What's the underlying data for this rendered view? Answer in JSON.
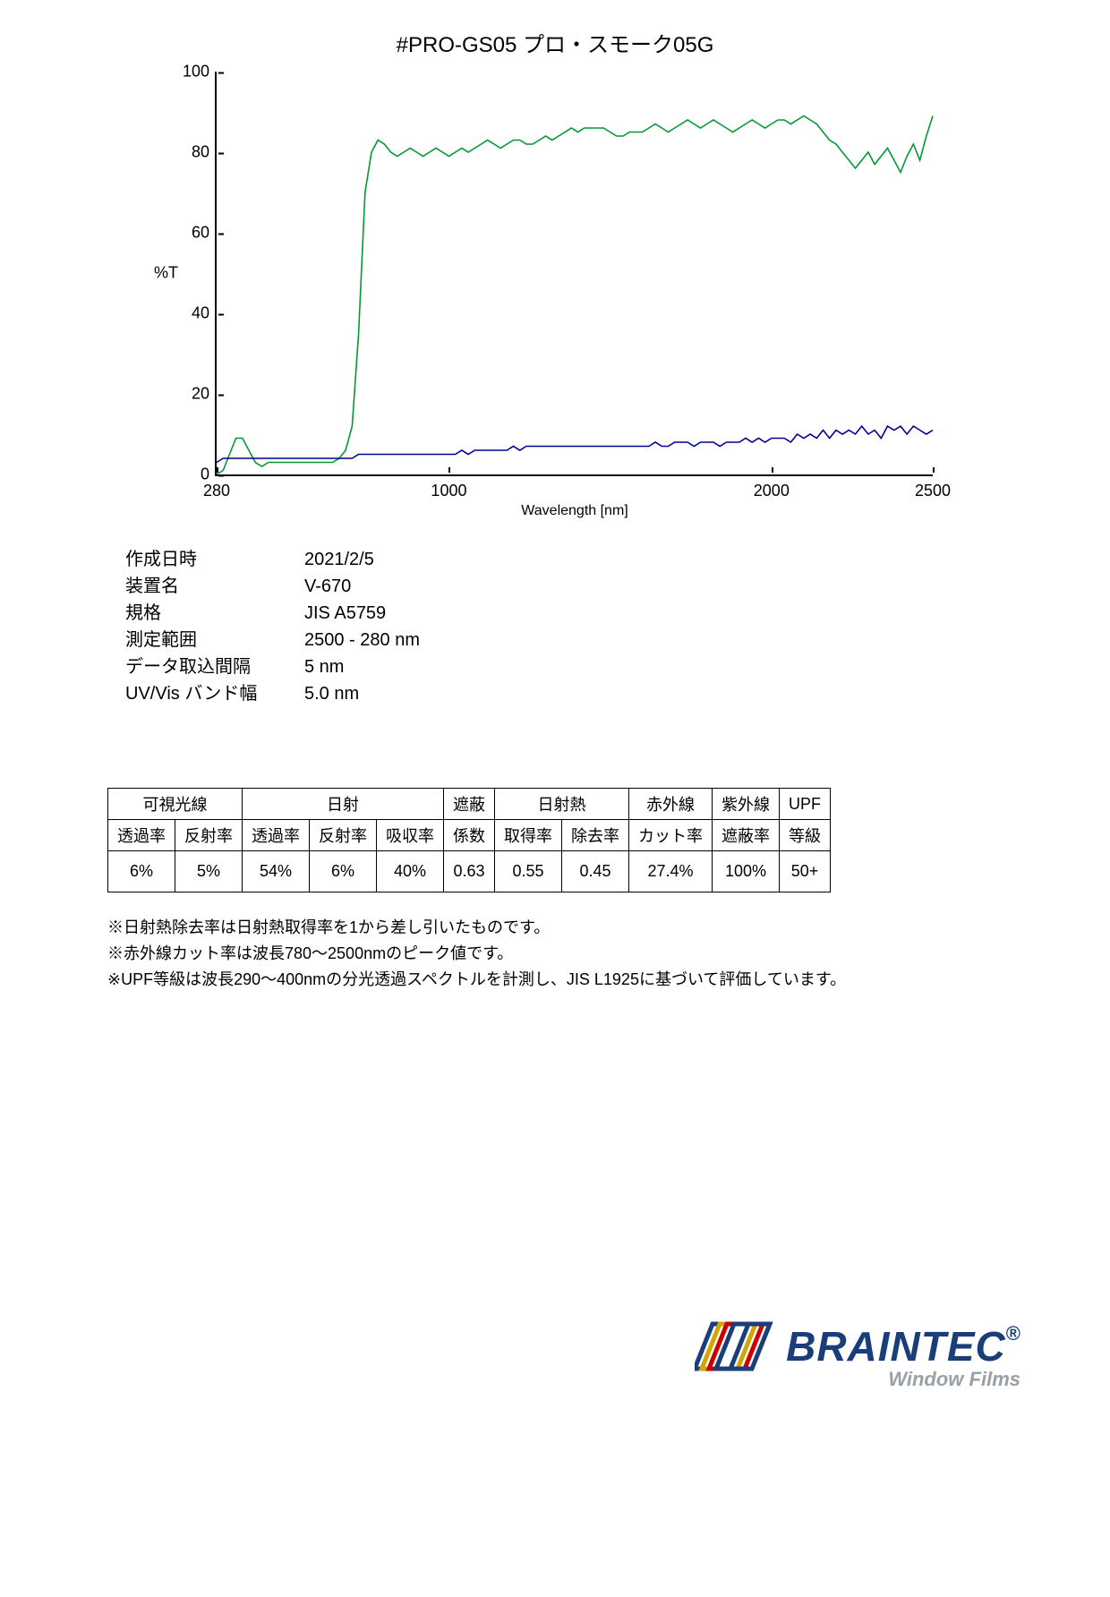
{
  "chart": {
    "title": "#PRO-GS05  プロ・スモーク05G",
    "ylabel": "%T",
    "xlabel": "Wavelength [nm]",
    "xlim": [
      280,
      2500
    ],
    "ylim": [
      0,
      100
    ],
    "xticks": [
      280,
      1000,
      2000,
      2500
    ],
    "yticks": [
      0,
      20,
      40,
      60,
      80,
      100
    ],
    "axis_color": "#000000",
    "background_color": "#ffffff",
    "line_width": 1.6,
    "series": [
      {
        "name": "green",
        "color": "#009933",
        "pts": [
          [
            280,
            0
          ],
          [
            300,
            1
          ],
          [
            320,
            5
          ],
          [
            340,
            9
          ],
          [
            360,
            9
          ],
          [
            380,
            6
          ],
          [
            400,
            3
          ],
          [
            420,
            2
          ],
          [
            440,
            3
          ],
          [
            460,
            3
          ],
          [
            480,
            3
          ],
          [
            500,
            3
          ],
          [
            520,
            3
          ],
          [
            540,
            3
          ],
          [
            560,
            3
          ],
          [
            580,
            3
          ],
          [
            600,
            3
          ],
          [
            620,
            3
          ],
          [
            640,
            3
          ],
          [
            660,
            4
          ],
          [
            680,
            6
          ],
          [
            700,
            12
          ],
          [
            720,
            35
          ],
          [
            740,
            70
          ],
          [
            760,
            80
          ],
          [
            780,
            83
          ],
          [
            800,
            82
          ],
          [
            820,
            80
          ],
          [
            840,
            79
          ],
          [
            860,
            80
          ],
          [
            880,
            81
          ],
          [
            900,
            80
          ],
          [
            920,
            79
          ],
          [
            940,
            80
          ],
          [
            960,
            81
          ],
          [
            980,
            80
          ],
          [
            1000,
            79
          ],
          [
            1020,
            80
          ],
          [
            1040,
            81
          ],
          [
            1060,
            80
          ],
          [
            1080,
            81
          ],
          [
            1100,
            82
          ],
          [
            1120,
            83
          ],
          [
            1140,
            82
          ],
          [
            1160,
            81
          ],
          [
            1180,
            82
          ],
          [
            1200,
            83
          ],
          [
            1220,
            83
          ],
          [
            1240,
            82
          ],
          [
            1260,
            82
          ],
          [
            1280,
            83
          ],
          [
            1300,
            84
          ],
          [
            1320,
            83
          ],
          [
            1340,
            84
          ],
          [
            1360,
            85
          ],
          [
            1380,
            86
          ],
          [
            1400,
            85
          ],
          [
            1420,
            86
          ],
          [
            1440,
            86
          ],
          [
            1460,
            86
          ],
          [
            1480,
            86
          ],
          [
            1500,
            85
          ],
          [
            1520,
            84
          ],
          [
            1540,
            84
          ],
          [
            1560,
            85
          ],
          [
            1580,
            85
          ],
          [
            1600,
            85
          ],
          [
            1620,
            86
          ],
          [
            1640,
            87
          ],
          [
            1660,
            86
          ],
          [
            1680,
            85
          ],
          [
            1700,
            86
          ],
          [
            1720,
            87
          ],
          [
            1740,
            88
          ],
          [
            1760,
            87
          ],
          [
            1780,
            86
          ],
          [
            1800,
            87
          ],
          [
            1820,
            88
          ],
          [
            1840,
            87
          ],
          [
            1860,
            86
          ],
          [
            1880,
            85
          ],
          [
            1900,
            86
          ],
          [
            1920,
            87
          ],
          [
            1940,
            88
          ],
          [
            1960,
            87
          ],
          [
            1980,
            86
          ],
          [
            2000,
            87
          ],
          [
            2020,
            88
          ],
          [
            2040,
            88
          ],
          [
            2060,
            87
          ],
          [
            2080,
            88
          ],
          [
            2100,
            89
          ],
          [
            2120,
            88
          ],
          [
            2140,
            87
          ],
          [
            2160,
            85
          ],
          [
            2180,
            83
          ],
          [
            2200,
            82
          ],
          [
            2220,
            80
          ],
          [
            2240,
            78
          ],
          [
            2260,
            76
          ],
          [
            2280,
            78
          ],
          [
            2300,
            80
          ],
          [
            2320,
            77
          ],
          [
            2340,
            79
          ],
          [
            2360,
            81
          ],
          [
            2380,
            78
          ],
          [
            2400,
            75
          ],
          [
            2420,
            79
          ],
          [
            2440,
            82
          ],
          [
            2460,
            78
          ],
          [
            2480,
            84
          ],
          [
            2500,
            89
          ]
        ]
      },
      {
        "name": "blue",
        "color": "#000099",
        "pts": [
          [
            280,
            3
          ],
          [
            300,
            4
          ],
          [
            320,
            4
          ],
          [
            340,
            4
          ],
          [
            360,
            4
          ],
          [
            380,
            4
          ],
          [
            400,
            4
          ],
          [
            420,
            4
          ],
          [
            440,
            4
          ],
          [
            460,
            4
          ],
          [
            480,
            4
          ],
          [
            500,
            4
          ],
          [
            520,
            4
          ],
          [
            540,
            4
          ],
          [
            560,
            4
          ],
          [
            580,
            4
          ],
          [
            600,
            4
          ],
          [
            620,
            4
          ],
          [
            640,
            4
          ],
          [
            660,
            4
          ],
          [
            680,
            4
          ],
          [
            700,
            4
          ],
          [
            720,
            5
          ],
          [
            740,
            5
          ],
          [
            760,
            5
          ],
          [
            780,
            5
          ],
          [
            800,
            5
          ],
          [
            820,
            5
          ],
          [
            840,
            5
          ],
          [
            860,
            5
          ],
          [
            880,
            5
          ],
          [
            900,
            5
          ],
          [
            920,
            5
          ],
          [
            940,
            5
          ],
          [
            960,
            5
          ],
          [
            980,
            5
          ],
          [
            1000,
            5
          ],
          [
            1020,
            5
          ],
          [
            1040,
            6
          ],
          [
            1060,
            5
          ],
          [
            1080,
            6
          ],
          [
            1100,
            6
          ],
          [
            1120,
            6
          ],
          [
            1140,
            6
          ],
          [
            1160,
            6
          ],
          [
            1180,
            6
          ],
          [
            1200,
            7
          ],
          [
            1220,
            6
          ],
          [
            1240,
            7
          ],
          [
            1260,
            7
          ],
          [
            1280,
            7
          ],
          [
            1300,
            7
          ],
          [
            1320,
            7
          ],
          [
            1340,
            7
          ],
          [
            1360,
            7
          ],
          [
            1380,
            7
          ],
          [
            1400,
            7
          ],
          [
            1420,
            7
          ],
          [
            1440,
            7
          ],
          [
            1460,
            7
          ],
          [
            1480,
            7
          ],
          [
            1500,
            7
          ],
          [
            1520,
            7
          ],
          [
            1540,
            7
          ],
          [
            1560,
            7
          ],
          [
            1580,
            7
          ],
          [
            1600,
            7
          ],
          [
            1620,
            7
          ],
          [
            1640,
            8
          ],
          [
            1660,
            7
          ],
          [
            1680,
            7
          ],
          [
            1700,
            8
          ],
          [
            1720,
            8
          ],
          [
            1740,
            8
          ],
          [
            1760,
            7
          ],
          [
            1780,
            8
          ],
          [
            1800,
            8
          ],
          [
            1820,
            8
          ],
          [
            1840,
            7
          ],
          [
            1860,
            8
          ],
          [
            1880,
            8
          ],
          [
            1900,
            8
          ],
          [
            1920,
            9
          ],
          [
            1940,
            8
          ],
          [
            1960,
            9
          ],
          [
            1980,
            8
          ],
          [
            2000,
            9
          ],
          [
            2020,
            9
          ],
          [
            2040,
            9
          ],
          [
            2060,
            8
          ],
          [
            2080,
            10
          ],
          [
            2100,
            9
          ],
          [
            2120,
            10
          ],
          [
            2140,
            9
          ],
          [
            2160,
            11
          ],
          [
            2180,
            9
          ],
          [
            2200,
            11
          ],
          [
            2220,
            10
          ],
          [
            2240,
            11
          ],
          [
            2260,
            10
          ],
          [
            2280,
            12
          ],
          [
            2300,
            10
          ],
          [
            2320,
            11
          ],
          [
            2340,
            9
          ],
          [
            2360,
            12
          ],
          [
            2380,
            11
          ],
          [
            2400,
            12
          ],
          [
            2420,
            10
          ],
          [
            2440,
            12
          ],
          [
            2460,
            11
          ],
          [
            2480,
            10
          ],
          [
            2500,
            11
          ]
        ]
      }
    ]
  },
  "meta": {
    "rows": [
      {
        "label": "作成日時",
        "value": "2021/2/5"
      },
      {
        "label": "装置名",
        "value": "V-670"
      },
      {
        "label": "規格",
        "value": "JIS A5759"
      },
      {
        "label": "測定範囲",
        "value": "2500 - 280 nm"
      },
      {
        "label": "データ取込間隔",
        "value": "5 nm"
      },
      {
        "label": "UV/Vis バンド幅",
        "value": "5.0 nm"
      }
    ]
  },
  "table": {
    "group_headers": [
      {
        "label": "可視光線",
        "span": 2
      },
      {
        "label": "日射",
        "span": 3
      },
      {
        "label": "遮蔽",
        "span": 1
      },
      {
        "label": "日射熱",
        "span": 2
      },
      {
        "label": "赤外線",
        "span": 1
      },
      {
        "label": "紫外線",
        "span": 1
      },
      {
        "label": "UPF",
        "span": 1
      }
    ],
    "sub_headers": [
      "透過率",
      "反射率",
      "透過率",
      "反射率",
      "吸収率",
      "係数",
      "取得率",
      "除去率",
      "カット率",
      "遮蔽率",
      "等級"
    ],
    "values": [
      "6%",
      "5%",
      "54%",
      "6%",
      "40%",
      "0.63",
      "0.55",
      "0.45",
      "27.4%",
      "100%",
      "50+"
    ]
  },
  "notes": [
    "※日射熱除去率は日射熱取得率を1から差し引いたものです。",
    "※赤外線カット率は波長780～2500nmのピーク値です。",
    "※UPF等級は波長290～400nmの分光透過スペクトルを計測し、JIS L1925に基づいて評価しています。"
  ],
  "brand": {
    "name": "BRAINTEC",
    "sub": "Window Films",
    "reg": "®",
    "colors": {
      "main": "#1a3e7a",
      "sub": "#9aa0a6",
      "logo": [
        "#1a3e7a",
        "#d4a500",
        "#cc0000",
        "#1a3e7a"
      ]
    }
  }
}
